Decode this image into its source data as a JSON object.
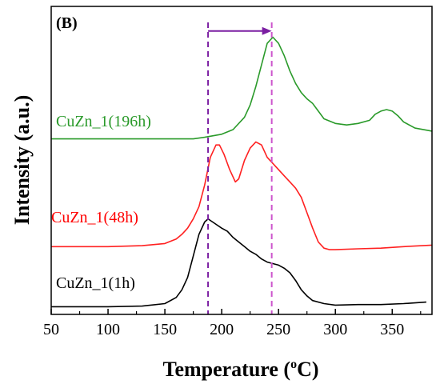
{
  "chart_data": {
    "type": "line",
    "panel_label": "(B)",
    "xlabel": "Temperature (",
    "xlabel_sup": "o",
    "xlabel_tail": "C)",
    "ylabel": "Intensity (a.u.)",
    "xlim": [
      50,
      385
    ],
    "ylim": [
      0,
      100
    ],
    "xticks": [
      50,
      100,
      150,
      200,
      250,
      300,
      350
    ],
    "y_ticks_labeled": false,
    "grid": false,
    "vlines": [
      {
        "x": 188,
        "color": "#7b1fa2",
        "style": "dashed"
      },
      {
        "x": 244,
        "color": "#cc55cc",
        "style": "dashed"
      }
    ],
    "arrow": {
      "from_x": 188,
      "to_x": 244,
      "y": 92,
      "color": "#7b1fa2"
    },
    "series": [
      {
        "name": "CuZn_1(1h)",
        "color": "#000000",
        "label_color": "#000000",
        "x": [
          50,
          100,
          130,
          150,
          160,
          165,
          170,
          175,
          180,
          185,
          188,
          192,
          196,
          200,
          205,
          210,
          215,
          220,
          225,
          230,
          235,
          240,
          245,
          250,
          255,
          260,
          265,
          270,
          275,
          280,
          290,
          300,
          320,
          340,
          360,
          380
        ],
        "y": [
          2.5,
          2.5,
          2.7,
          3.5,
          5.5,
          8,
          12,
          19,
          26,
          30,
          31,
          30,
          29,
          28,
          27,
          25,
          23.5,
          22,
          20.5,
          19.5,
          18,
          17,
          16.5,
          16,
          15,
          13.5,
          11,
          8,
          6,
          4.5,
          3.5,
          3,
          3.2,
          3.2,
          3.5,
          4
        ]
      },
      {
        "name": "CuZn_1(48h)",
        "color": "#ff2020",
        "label_color": "#ff0000",
        "x": [
          50,
          100,
          130,
          150,
          160,
          165,
          170,
          175,
          180,
          185,
          190,
          195,
          198,
          202,
          207,
          212,
          215,
          220,
          225,
          230,
          235,
          240,
          245,
          250,
          255,
          260,
          265,
          270,
          275,
          280,
          285,
          290,
          295,
          300,
          320,
          340,
          360,
          385
        ],
        "y": [
          22,
          22,
          22.3,
          23,
          24.5,
          26,
          28,
          31,
          35,
          42,
          51,
          55,
          55,
          52,
          47,
          43,
          44,
          50,
          54,
          56,
          55,
          51,
          49,
          47,
          45,
          43,
          41,
          38,
          33,
          28,
          23.5,
          21.5,
          21,
          21,
          21.3,
          21.5,
          22,
          22.5
        ]
      },
      {
        "name": "CuZn_1(196h)",
        "color": "#2a9a2a",
        "label_color": "#2a9a2a",
        "x": [
          50,
          100,
          150,
          175,
          185,
          200,
          210,
          220,
          225,
          230,
          235,
          240,
          245,
          250,
          255,
          260,
          265,
          270,
          275,
          280,
          285,
          290,
          300,
          310,
          320,
          330,
          335,
          340,
          345,
          350,
          355,
          360,
          370,
          385
        ],
        "y": [
          57,
          57,
          57,
          57,
          57.5,
          58.5,
          60,
          64,
          68,
          74,
          81,
          88,
          90,
          88,
          84,
          79,
          75,
          72,
          70,
          68.5,
          66,
          63.5,
          62,
          61.5,
          62,
          63,
          65,
          66,
          66.5,
          66,
          64.5,
          62.5,
          60.5,
          59.5
        ]
      }
    ]
  }
}
